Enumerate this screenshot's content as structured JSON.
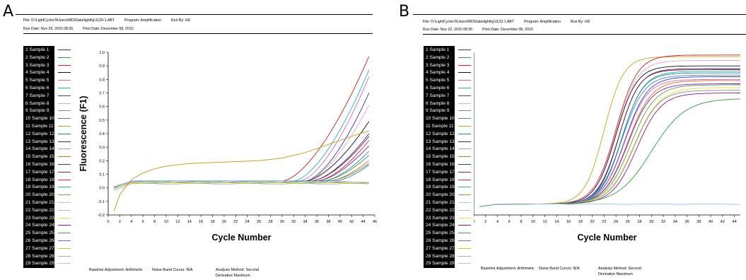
{
  "panels": [
    {
      "label": "A",
      "meta_file": "File: D:\\LightCycler3\\Users\\WD\\Data\\lightfyj\\1129-1.ABT",
      "meta_program": "Program: Amplification",
      "meta_runby": "Run By: HD",
      "meta_rundate": "Run Date: Nov 29, 2010 08:35",
      "meta_printdate": "Print Date: December 08, 2010",
      "footer_baseline": "Baseline Adjustment: Arithmetic",
      "footer_noise": "Noise Band Cursor: N/A",
      "footer_method": "Analysis Method: Second",
      "footer_method2": "Derivative Maximum"
    },
    {
      "label": "B",
      "meta_file": "File: D:\\LightCycler3\\Users\\WD\\Data\\lightfyj\\1123-1.ABT",
      "meta_program": "Program: Amplification",
      "meta_runby": "Run By: HD",
      "meta_rundate": "Run Date: Nov 22, 2010 08:35",
      "meta_printdate": "Print Date: December 08, 2010",
      "footer_baseline": "Baseline Adjustment: Arithmetic",
      "footer_noise": "Noise Band Cursor: N/A",
      "footer_method": "Analysis Method: Second",
      "footer_method2": "Derivative Maximum"
    }
  ],
  "legend_colors": [
    "#3a2f9a",
    "#2e9b3a",
    "#c81e1e",
    "#111111",
    "#c86ac0",
    "#2bb0b0",
    "#3040c0",
    "#f0a0c0",
    "#888888",
    "#4a7ad0",
    "#c8a020",
    "#1a8a8a",
    "#7a1a2a",
    "#a0a0d0",
    "#e07020",
    "#1a5a1a",
    "#8020a0",
    "#c03030",
    "#30a0c0",
    "#d08040",
    "#a0e0a0",
    "#a0c0e0",
    "#e0e040",
    "#8a1a8a",
    "#50a050",
    "#9060c0",
    "#d0c030",
    "#c0a0c0",
    "#b0d0e0"
  ],
  "chart_data": [
    {
      "type": "line",
      "legend": [
        "1 Sample 1",
        "2 Sample 2",
        "3 Sample 3",
        "4 Sample 4",
        "5 Sample 5",
        "6 Sample 6",
        "7 Sample 7",
        "8 Sample 8",
        "9 Sample 9",
        "10 Sample 10",
        "11 Sample 11",
        "12 Sample 12",
        "13 Sample 13",
        "14 Sample 14",
        "15 Sample 15",
        "16 Sample 16",
        "17 Sample 17",
        "18 Sample 18",
        "19 Sample 19",
        "20 Sample 20",
        "21 Sample 21",
        "22 Sample 22",
        "23 Sample 23",
        "24 Sample 24",
        "25 Sample 25",
        "26 Sample 26",
        "27 Sample 27",
        "28 Sample 28",
        "29 Sample 29"
      ],
      "xlabel": "Cycle Number",
      "ylabel": "Fluorescence (F1)",
      "xlim": [
        0,
        46
      ],
      "ylim": [
        -0.2,
        1.0
      ],
      "x_ticks": [
        "0",
        "2",
        "4",
        "6",
        "8",
        "10",
        "12",
        "14",
        "16",
        "18",
        "20",
        "22",
        "24",
        "26",
        "28",
        "30",
        "32",
        "34",
        "36",
        "38",
        "40",
        "42",
        "44",
        "46"
      ],
      "y_ticks": [
        "-0.2",
        "-0.1",
        "0.0",
        "0.1",
        "0.2",
        "0.3",
        "0.4",
        "0.5",
        "0.6",
        "0.7",
        "0.8",
        "0.9",
        "1.0"
      ],
      "y_tick_values": [
        -0.2,
        -0.1,
        0.0,
        0.1,
        0.2,
        0.3,
        0.4,
        0.5,
        0.6,
        0.7,
        0.8,
        0.9,
        1.0
      ],
      "x_range": [
        1,
        45
      ],
      "series_shape": [
        {
          "base": 0.05,
          "ct": 34,
          "plateau": 0.92,
          "k": 0.09,
          "color_index": 2
        },
        {
          "base": 0.05,
          "ct": 36,
          "plateau": 0.82,
          "k": 0.09,
          "color_index": 5
        },
        {
          "base": 0.05,
          "ct": 37,
          "plateau": 0.77,
          "k": 0.09,
          "color_index": 4
        },
        {
          "base": 0.05,
          "ct": 38,
          "plateau": 0.65,
          "k": 0.09,
          "color_index": 6
        },
        {
          "base": 0.05,
          "ct": 38,
          "plateau": 0.56,
          "k": 0.09,
          "color_index": 7
        },
        {
          "base": 0.05,
          "ct": 38,
          "plateau": 0.44,
          "k": 0.09,
          "color_index": 3
        },
        {
          "base": 0.05,
          "ct": 39,
          "plateau": 0.35,
          "k": 0.09,
          "color_index": 0
        },
        {
          "base": 0.05,
          "ct": 39,
          "plateau": 0.33,
          "k": 0.09,
          "color_index": 12
        },
        {
          "base": 0.05,
          "ct": 40,
          "plateau": 0.3,
          "k": 0.09,
          "color_index": 17
        },
        {
          "base": 0.05,
          "ct": 40,
          "plateau": 0.26,
          "k": 0.09,
          "color_index": 16
        },
        {
          "base": 0.05,
          "ct": 41,
          "plateau": 0.22,
          "k": 0.09,
          "color_index": 9
        },
        {
          "base": 0.05,
          "ct": 41,
          "plateau": 0.19,
          "k": 0.09,
          "color_index": 1
        },
        {
          "base": 0.05,
          "ct": 42,
          "plateau": 0.15,
          "k": 0.09,
          "color_index": 14
        },
        {
          "base": 0.05,
          "ct": 42,
          "plateau": 0.13,
          "k": 0.09,
          "color_index": 8
        },
        {
          "base": 0.05,
          "ct": 43,
          "plateau": 0.12,
          "k": 0.09,
          "color_index": 11
        },
        {
          "base": 0.04,
          "ct": 0,
          "plateau": 0.0,
          "k": 0,
          "color_index": 22
        },
        {
          "base": 0.03,
          "ct": 0,
          "plateau": 0.0,
          "k": 0,
          "color_index": 21
        },
        {
          "base": 0.04,
          "ct": 0,
          "plateau": 0.0,
          "k": 0,
          "color_index": 25
        },
        {
          "base": 0.045,
          "ct": 0,
          "plateau": 0.0,
          "k": 0,
          "color_index": 28
        },
        {
          "base": 0.035,
          "ct": 0,
          "plateau": 0.0,
          "k": 0,
          "color_index": 26
        }
      ],
      "special_series": [
        {
          "color_index": 10,
          "points": [
            [
              1,
              -0.17
            ],
            [
              2,
              -0.05
            ],
            [
              4,
              0.06
            ],
            [
              6,
              0.11
            ],
            [
              8,
              0.14
            ],
            [
              10,
              0.16
            ],
            [
              14,
              0.18
            ],
            [
              20,
              0.19
            ],
            [
              26,
              0.2
            ],
            [
              30,
              0.22
            ],
            [
              34,
              0.26
            ],
            [
              38,
              0.32
            ],
            [
              42,
              0.38
            ],
            [
              45,
              0.42
            ]
          ]
        }
      ]
    },
    {
      "type": "line",
      "legend": [
        "1 Sample 1",
        "2 Sample 2",
        "3 Sample 3",
        "4 Sample 4",
        "5 Sample 5",
        "6 Sample 6",
        "7 Sample 7",
        "8 Sample 8",
        "9 Sample 9",
        "10 Sample 10",
        "11 Sample 11",
        "12 Sample 12",
        "13 Sample 13",
        "14 Sample 14",
        "15 Sample 15",
        "16 Sample 16",
        "17 Sample 17",
        "18 Sample 18",
        "19 Sample 19",
        "20 Sample 20",
        "21 Sample 21",
        "22 Sample 22",
        "23 Sample 23",
        "24 Sample 24",
        "25 Sample 25",
        "26 Sample 26",
        "27 Sample 27",
        "28 Sample 28",
        "29 Sample 29"
      ],
      "xlabel": "Cycle Number",
      "ylabel": "Fluorescence (F1)",
      "xlim": [
        0,
        45
      ],
      "ylim": [
        -0.2,
        2.8
      ],
      "x_ticks": [
        "0",
        "2",
        "4",
        "6",
        "8",
        "10",
        "12",
        "14",
        "16",
        "18",
        "20",
        "22",
        "24",
        "26",
        "28",
        "30",
        "32",
        "34",
        "36",
        "38",
        "40",
        "42",
        "44"
      ],
      "y_ticks": [
        "-0.2",
        "0.0",
        "0.2",
        "0.4",
        "0.6",
        "0.8",
        "1.0",
        "1.2",
        "1.4",
        "1.6",
        "1.8",
        "2.0",
        "2.2",
        "2.4",
        "2.6",
        "2.8"
      ],
      "y_tick_values": [
        -0.2,
        0.0,
        0.2,
        0.4,
        0.6,
        0.8,
        1.0,
        1.2,
        1.4,
        1.6,
        1.8,
        2.0,
        2.2,
        2.4,
        2.6,
        2.8
      ],
      "x_range": [
        1,
        45
      ],
      "series_shape": [
        {
          "base": 0.0,
          "ct": 22,
          "plateau": 2.72,
          "k": 0.28,
          "color_index": 10
        },
        {
          "base": 0.0,
          "ct": 24,
          "plateau": 2.75,
          "k": 0.25,
          "color_index": 2
        },
        {
          "base": 0.0,
          "ct": 24,
          "plateau": 2.65,
          "k": 0.25,
          "color_index": 7
        },
        {
          "base": 0.0,
          "ct": 24,
          "plateau": 2.55,
          "k": 0.26,
          "color_index": 3
        },
        {
          "base": 0.0,
          "ct": 24.5,
          "plateau": 2.5,
          "k": 0.26,
          "color_index": 0
        },
        {
          "base": 0.0,
          "ct": 24.5,
          "plateau": 2.48,
          "k": 0.27,
          "color_index": 12
        },
        {
          "base": 0.0,
          "ct": 25,
          "plateau": 2.45,
          "k": 0.25,
          "color_index": 5
        },
        {
          "base": 0.0,
          "ct": 25,
          "plateau": 2.42,
          "k": 0.26,
          "color_index": 11
        },
        {
          "base": 0.0,
          "ct": 25,
          "plateau": 2.38,
          "k": 0.24,
          "color_index": 9
        },
        {
          "base": 0.0,
          "ct": 25.5,
          "plateau": 2.35,
          "k": 0.24,
          "color_index": 6
        },
        {
          "base": 0.0,
          "ct": 25.5,
          "plateau": 2.3,
          "k": 0.24,
          "color_index": 4
        },
        {
          "base": 0.0,
          "ct": 26,
          "plateau": 2.28,
          "k": 0.23,
          "color_index": 14
        },
        {
          "base": 0.0,
          "ct": 26,
          "plateau": 2.22,
          "k": 0.23,
          "color_index": 16
        },
        {
          "base": 0.0,
          "ct": 26.5,
          "plateau": 2.2,
          "k": 0.22,
          "color_index": 24
        },
        {
          "base": 0.0,
          "ct": 27,
          "plateau": 2.15,
          "k": 0.21,
          "color_index": 22
        },
        {
          "base": 0.0,
          "ct": 27,
          "plateau": 2.1,
          "k": 0.22,
          "color_index": 8
        },
        {
          "base": 0.0,
          "ct": 27.5,
          "plateau": 2.05,
          "k": 0.22,
          "color_index": 23
        },
        {
          "base": 0.0,
          "ct": 30,
          "plateau": 1.95,
          "k": 0.16,
          "color_index": 1
        },
        {
          "base": 0.0,
          "ct": 0,
          "plateau": 0.0,
          "k": 0,
          "color_index": 21
        }
      ],
      "special_series": []
    }
  ]
}
